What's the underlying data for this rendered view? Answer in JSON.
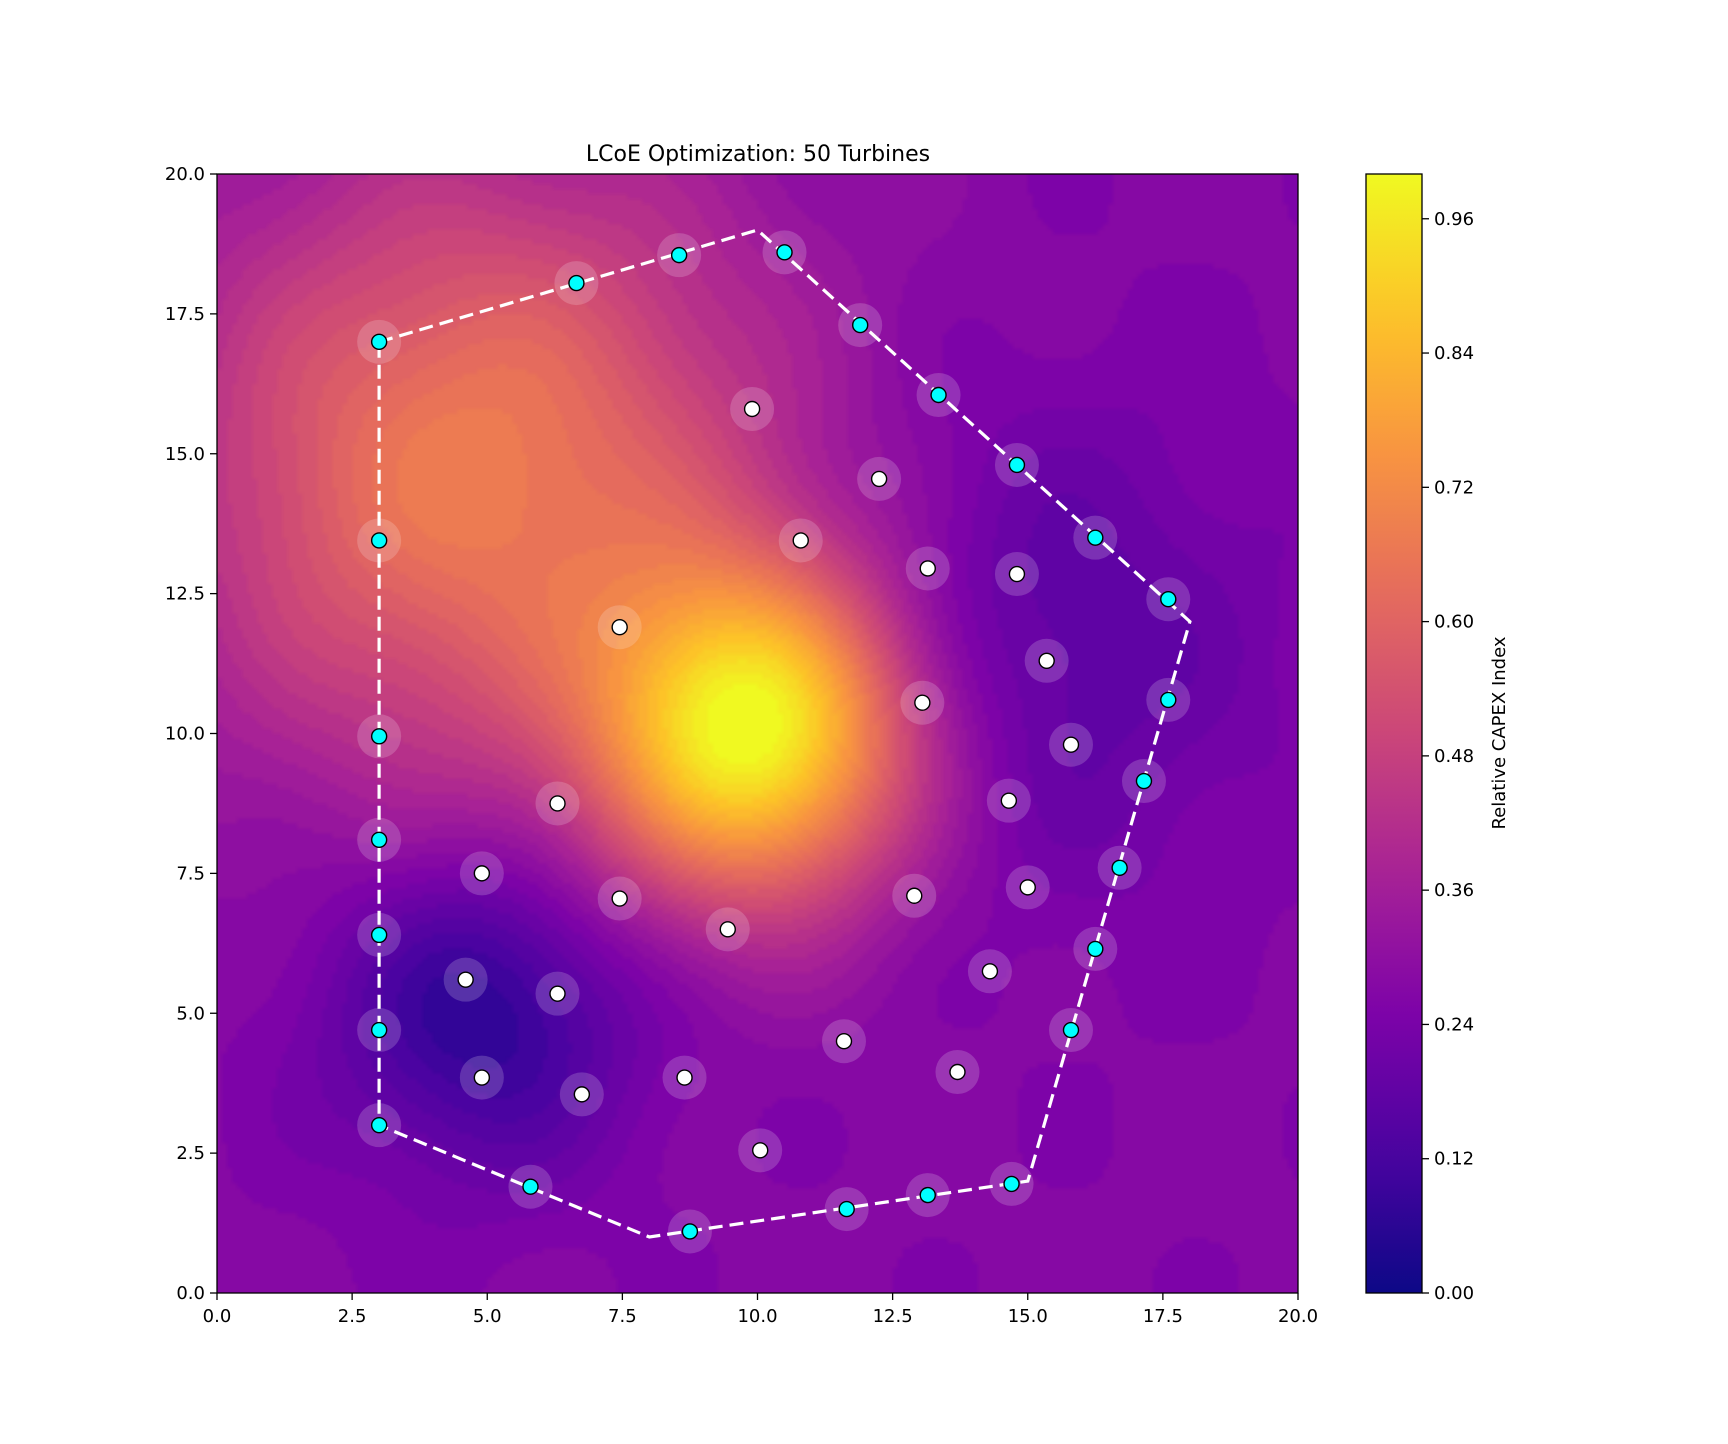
{
  "chart_data": {
    "type": "scatter",
    "title": "LCoE Optimization: 50 Turbines",
    "xlabel": "",
    "ylabel": "",
    "xlim": [
      0,
      20
    ],
    "ylim": [
      0,
      20
    ],
    "xticks": [
      "0.0",
      "2.5",
      "5.0",
      "7.5",
      "10.0",
      "12.5",
      "15.0",
      "17.5",
      "20.0"
    ],
    "yticks": [
      "0.0",
      "2.5",
      "5.0",
      "7.5",
      "10.0",
      "12.5",
      "15.0",
      "17.5",
      "20.0"
    ],
    "colorbar": {
      "label": "Relative CAPEX Index",
      "range": [
        0,
        1
      ],
      "ticks": [
        "0.00",
        "0.12",
        "0.24",
        "0.36",
        "0.48",
        "0.60",
        "0.72",
        "0.84",
        "0.96"
      ],
      "colormap": "plasma"
    },
    "heatmap_features": [
      {
        "x": 10,
        "y": 10,
        "value": 0.97,
        "sigma": 2.1
      },
      {
        "x": 4.8,
        "y": 14.7,
        "value": 0.68,
        "sigma": 3.8
      },
      {
        "x": 4.9,
        "y": 5.1,
        "value": 0.05,
        "sigma": 2.0
      },
      {
        "x": 15.0,
        "y": 11.5,
        "value": 0.15,
        "sigma": 3.0
      }
    ],
    "heatmap_background": 0.27,
    "boundary": {
      "style": "dashed",
      "color": "#ffffff",
      "vertices": [
        [
          3,
          17
        ],
        [
          10,
          19
        ],
        [
          18,
          12
        ],
        [
          15,
          2
        ],
        [
          8,
          1
        ],
        [
          3,
          3
        ]
      ]
    },
    "series": [
      {
        "role": "boundary turbines",
        "color": "#00ffff",
        "points": [
          [
            3.0,
            17.0
          ],
          [
            6.65,
            18.05
          ],
          [
            8.55,
            18.55
          ],
          [
            10.5,
            18.6
          ],
          [
            11.9,
            17.3
          ],
          [
            13.35,
            16.05
          ],
          [
            14.8,
            14.8
          ],
          [
            16.25,
            13.5
          ],
          [
            17.6,
            12.4
          ],
          [
            17.6,
            10.6
          ],
          [
            17.15,
            9.15
          ],
          [
            16.7,
            7.6
          ],
          [
            16.25,
            6.15
          ],
          [
            15.8,
            4.7
          ],
          [
            14.7,
            1.95
          ],
          [
            13.15,
            1.75
          ],
          [
            11.65,
            1.5
          ],
          [
            8.75,
            1.1
          ],
          [
            5.8,
            1.9
          ],
          [
            3.0,
            3.0
          ],
          [
            3.0,
            4.7
          ],
          [
            3.0,
            6.4
          ],
          [
            3.0,
            8.1
          ],
          [
            3.0,
            9.95
          ],
          [
            3.0,
            13.45
          ]
        ]
      },
      {
        "role": "interior turbines",
        "color": "#ffffff",
        "points": [
          [
            9.9,
            15.8
          ],
          [
            12.25,
            14.55
          ],
          [
            10.8,
            13.45
          ],
          [
            13.15,
            12.95
          ],
          [
            14.8,
            12.85
          ],
          [
            7.45,
            11.9
          ],
          [
            15.35,
            11.3
          ],
          [
            13.05,
            10.55
          ],
          [
            15.8,
            9.8
          ],
          [
            6.3,
            8.75
          ],
          [
            14.65,
            8.8
          ],
          [
            4.9,
            7.5
          ],
          [
            7.45,
            7.05
          ],
          [
            12.9,
            7.1
          ],
          [
            15.0,
            7.25
          ],
          [
            9.45,
            6.5
          ],
          [
            4.6,
            5.6
          ],
          [
            6.3,
            5.35
          ],
          [
            14.3,
            5.75
          ],
          [
            11.6,
            4.5
          ],
          [
            4.9,
            3.85
          ],
          [
            6.75,
            3.55
          ],
          [
            8.65,
            3.85
          ],
          [
            13.7,
            3.95
          ],
          [
            10.05,
            2.55
          ]
        ]
      }
    ]
  }
}
